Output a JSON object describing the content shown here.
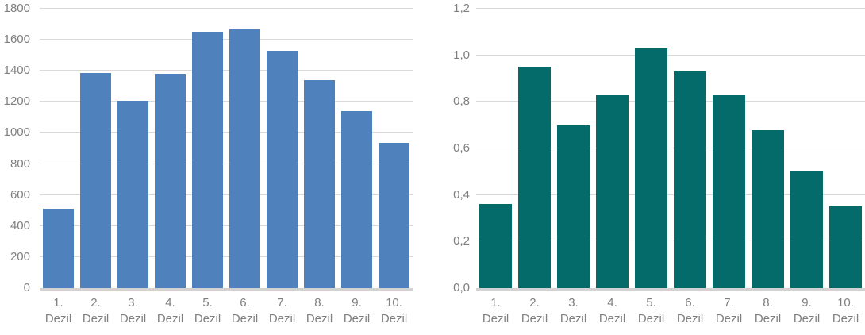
{
  "figure": {
    "description": "Two vertical bar charts over income deciles (1. Dezil to 10. Dezil)",
    "background_color": "#ffffff",
    "gridline_color": "#d9d9d9",
    "axis_line_color": "#d2d2d2",
    "label_color": "#7f7f7f"
  },
  "chart_data": [
    {
      "type": "bar",
      "title": "",
      "xlabel": "",
      "ylabel": "",
      "categories": [
        "1. Dezil",
        "2. Dezil",
        "3. Dezil",
        "4. Dezil",
        "5. Dezil",
        "6. Dezil",
        "7. Dezil",
        "8. Dezil",
        "9. Dezil",
        "10. Dezil"
      ],
      "values": [
        510,
        1385,
        1205,
        1380,
        1650,
        1665,
        1530,
        1340,
        1140,
        935
      ],
      "ylim": [
        0,
        1800
      ],
      "ytick_labels": [
        "0",
        "200",
        "400",
        "600",
        "800",
        "1000",
        "1200",
        "1400",
        "1600",
        "1800"
      ],
      "bar_color": "#4f81bd",
      "grid": true,
      "legend": null
    },
    {
      "type": "bar",
      "title": "",
      "xlabel": "",
      "ylabel": "",
      "categories": [
        "1. Dezil",
        "2. Dezil",
        "3. Dezil",
        "4. Dezil",
        "5. Dezil",
        "6. Dezil",
        "7. Dezil",
        "8. Dezil",
        "9. Dezil",
        "10. Dezil"
      ],
      "values": [
        0.36,
        0.95,
        0.7,
        0.83,
        1.03,
        0.93,
        0.83,
        0.68,
        0.5,
        0.35
      ],
      "ylim": [
        0,
        1.2
      ],
      "ytick_labels": [
        "0,0",
        "0,2",
        "0,4",
        "0,6",
        "0,8",
        "1,0",
        "1,2"
      ],
      "bar_color": "#046a6a",
      "grid": true,
      "legend": null
    }
  ]
}
